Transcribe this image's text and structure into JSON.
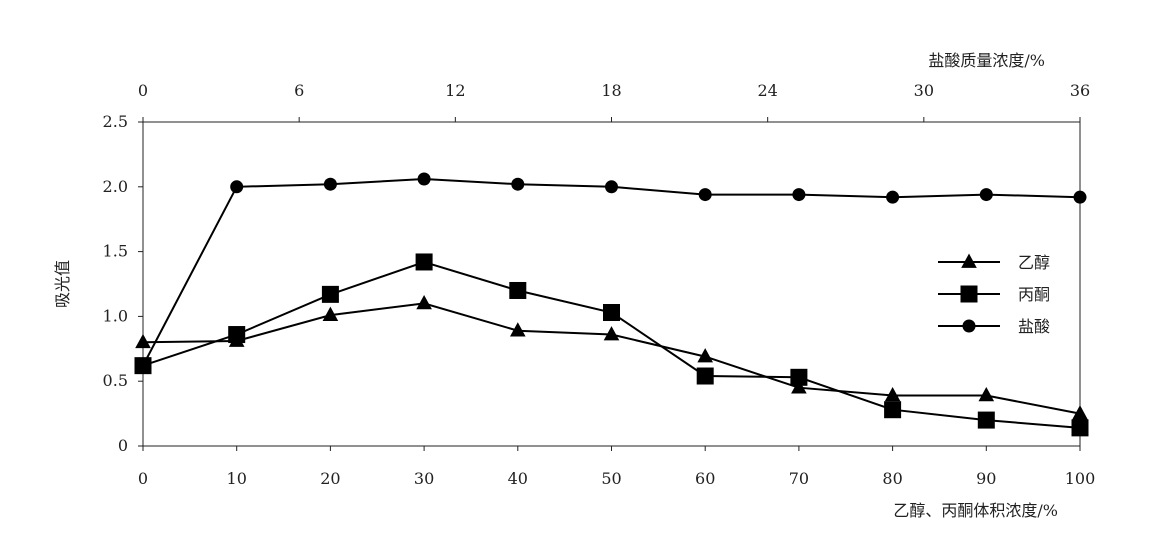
{
  "chart_data": {
    "type": "line",
    "ylabel": "吸光值",
    "xlabel_bottom": "乙醇、丙酮体积浓度/%",
    "xlabel_top": "盐酸质量浓度/%",
    "xlim": [
      0,
      100
    ],
    "ylim": [
      0,
      2.5
    ],
    "x_ticks_bottom": [
      "0",
      "10",
      "20",
      "30",
      "40",
      "50",
      "60",
      "70",
      "80",
      "90",
      "100"
    ],
    "x_ticks_top": [
      {
        "label": "0",
        "value": 0
      },
      {
        "label": "6",
        "value": 6
      },
      {
        "label": "12",
        "value": 12
      },
      {
        "label": "18",
        "value": 18
      },
      {
        "label": "24",
        "value": 24
      },
      {
        "label": "30",
        "value": 30
      },
      {
        "label": "36",
        "value": 36
      }
    ],
    "top_axis_range": [
      0,
      36
    ],
    "y_ticks": [
      "0",
      "0.5",
      "1.0",
      "1.5",
      "2.0",
      "2.5"
    ],
    "grid": false,
    "legend_position": "right",
    "series": [
      {
        "name": "乙醇",
        "marker": "triangle",
        "color": "#000000",
        "x": [
          0,
          10,
          20,
          30,
          40,
          50,
          60,
          70,
          80,
          90,
          100
        ],
        "y": [
          0.8,
          0.81,
          1.01,
          1.1,
          0.89,
          0.86,
          0.69,
          0.45,
          0.39,
          0.39,
          0.25
        ]
      },
      {
        "name": "丙酮",
        "marker": "square",
        "color": "#000000",
        "x": [
          0,
          10,
          20,
          30,
          40,
          50,
          60,
          70,
          80,
          90,
          100
        ],
        "y": [
          0.62,
          0.86,
          1.17,
          1.42,
          1.2,
          1.03,
          0.54,
          0.53,
          0.28,
          0.2,
          0.14
        ]
      },
      {
        "name": "盐酸",
        "marker": "circle",
        "color": "#000000",
        "x": [
          0,
          10,
          20,
          30,
          40,
          50,
          60,
          70,
          80,
          90,
          100
        ],
        "y": [
          0.62,
          2.0,
          2.02,
          2.06,
          2.02,
          2.0,
          1.94,
          1.94,
          1.92,
          1.94,
          1.92
        ]
      }
    ]
  }
}
